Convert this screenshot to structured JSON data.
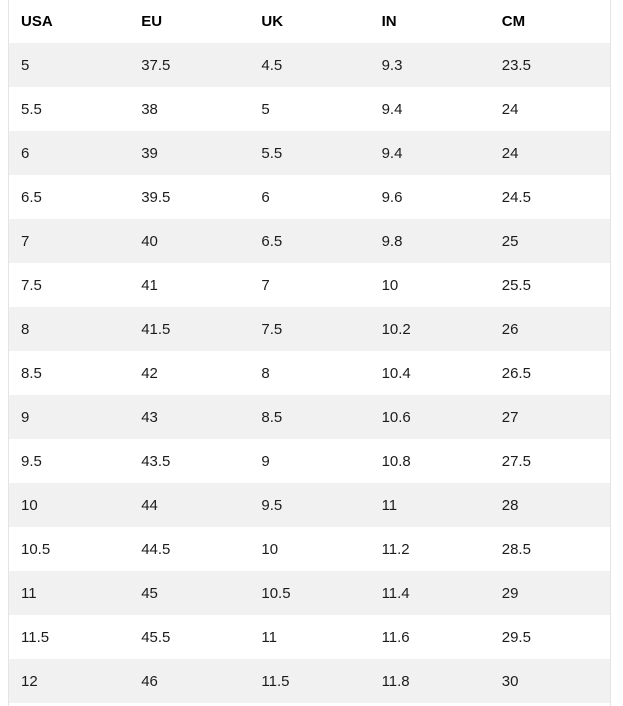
{
  "chart_data": {
    "type": "table",
    "columns": [
      "USA",
      "EU",
      "UK",
      "IN",
      "CM"
    ],
    "rows": [
      [
        "5",
        "37.5",
        "4.5",
        "9.3",
        "23.5"
      ],
      [
        "5.5",
        "38",
        "5",
        "9.4",
        "24"
      ],
      [
        "6",
        "39",
        "5.5",
        "9.4",
        "24"
      ],
      [
        "6.5",
        "39.5",
        "6",
        "9.6",
        "24.5"
      ],
      [
        "7",
        "40",
        "6.5",
        "9.8",
        "25"
      ],
      [
        "7.5",
        "41",
        "7",
        "10",
        "25.5"
      ],
      [
        "8",
        "41.5",
        "7.5",
        "10.2",
        "26"
      ],
      [
        "8.5",
        "42",
        "8",
        "10.4",
        "26.5"
      ],
      [
        "9",
        "43",
        "8.5",
        "10.6",
        "27"
      ],
      [
        "9.5",
        "43.5",
        "9",
        "10.8",
        "27.5"
      ],
      [
        "10",
        "44",
        "9.5",
        "11",
        "28"
      ],
      [
        "10.5",
        "44.5",
        "10",
        "11.2",
        "28.5"
      ],
      [
        "11",
        "45",
        "10.5",
        "11.4",
        "29"
      ],
      [
        "11.5",
        "45.5",
        "11",
        "11.6",
        "29.5"
      ],
      [
        "12",
        "46",
        "11.5",
        "11.8",
        "30"
      ]
    ],
    "layout": {
      "header_row_background": "#ffffff",
      "striped": true,
      "stripe_pattern": "odd-rows-gray",
      "alignment": "left"
    }
  },
  "colors": {
    "stripe": "#f1f1f1",
    "border": "#e4e4e4",
    "header_text": "#000000",
    "cell_text": "#1c1c1c",
    "background": "#ffffff"
  }
}
